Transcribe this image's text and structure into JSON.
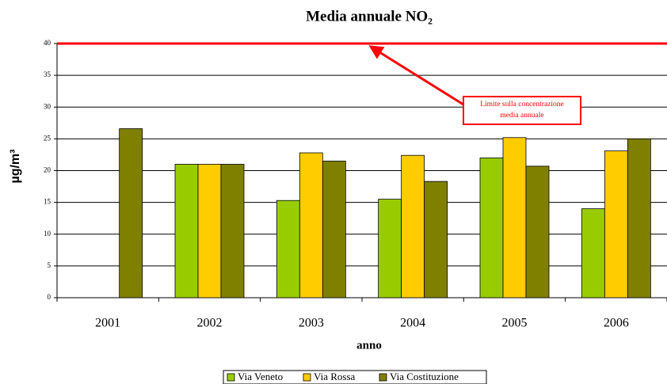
{
  "chart_data": {
    "type": "bar",
    "title": "Media annuale NO₂",
    "y_label": "µg/m³",
    "x_label": "anno",
    "categories": [
      "2001",
      "2002",
      "2003",
      "2004",
      "2005",
      "2006"
    ],
    "series": [
      {
        "name": "Via Veneto",
        "color": "#99cc00",
        "values": [
          null,
          21,
          15.3,
          15.5,
          22,
          14
        ]
      },
      {
        "name": "Via Rossa",
        "color": "#ffcc00",
        "values": [
          null,
          21,
          22.8,
          22.4,
          25.2,
          23.1
        ]
      },
      {
        "name": "Via Costituzione",
        "color": "#808000",
        "values": [
          26.6,
          21,
          21.5,
          18.3,
          20.7,
          25
        ]
      }
    ],
    "ylim": [
      0,
      40
    ],
    "yticks": [
      0,
      5,
      10,
      15,
      20,
      25,
      30,
      35,
      40
    ],
    "grid": true,
    "limit": 40,
    "limit_color": "#ff0000",
    "annotation": [
      "Limite sulla concentrazione",
      "media annuale"
    ],
    "legend": "bottom"
  }
}
